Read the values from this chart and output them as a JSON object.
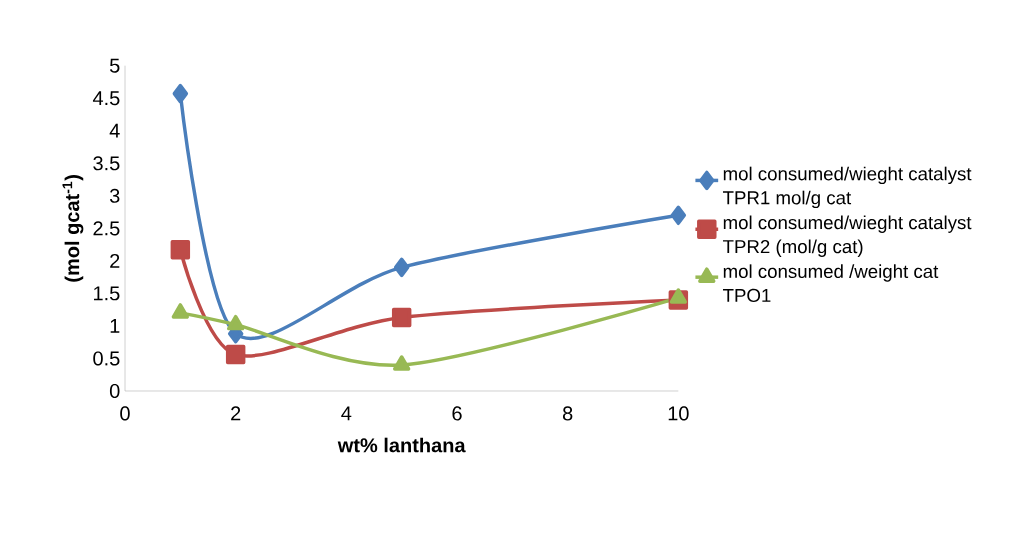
{
  "chart_data": {
    "type": "line",
    "xlabel": "wt% lanthana",
    "ylabel": "(mol gcat$^{-1}$)",
    "x": [
      1,
      2,
      5,
      10
    ],
    "series": [
      {
        "name": "mol consumed/wieght catalyst TPR1 mol/g cat",
        "color": "#4a7ebb",
        "marker": "diamond",
        "values": [
          4.57,
          0.88,
          1.9,
          2.7
        ]
      },
      {
        "name": "mol consumed/wieght catalyst TPR2 (mol/g cat)",
        "color": "#be4b48",
        "marker": "square",
        "values": [
          2.17,
          0.56,
          1.13,
          1.4
        ]
      },
      {
        "name": "mol consumed /weight cat TPO1",
        "color": "#98b954",
        "marker": "triangle",
        "values": [
          1.2,
          1.02,
          0.4,
          1.43
        ]
      }
    ],
    "xlim": [
      0,
      10
    ],
    "xticks": [
      0,
      2,
      4,
      6,
      8,
      10
    ],
    "ylim": [
      0,
      5
    ],
    "yticks": [
      0,
      0.5,
      1,
      1.5,
      2,
      2.5,
      3,
      3.5,
      4,
      4.5,
      5
    ],
    "grid": false,
    "legend": "right",
    "line_style": "solid"
  }
}
